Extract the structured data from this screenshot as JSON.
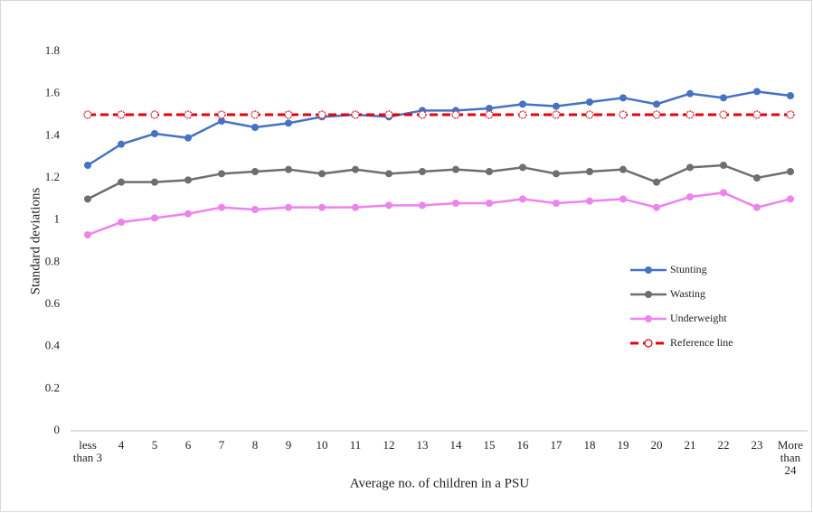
{
  "chart_data": {
    "type": "line",
    "x_label": "Average no. of children in a PSU",
    "y_label": "Standard deviations",
    "categories": [
      "less than 3",
      "4",
      "5",
      "6",
      "7",
      "8",
      "9",
      "10",
      "11",
      "12",
      "13",
      "14",
      "15",
      "16",
      "17",
      "18",
      "19",
      "20",
      "21",
      "22",
      "23",
      "More than 24"
    ],
    "series": [
      {
        "name": "Stunting",
        "color": "#4472c4",
        "values": [
          1.26,
          1.36,
          1.41,
          1.39,
          1.47,
          1.44,
          1.46,
          1.49,
          1.5,
          1.49,
          1.52,
          1.52,
          1.53,
          1.55,
          1.54,
          1.56,
          1.58,
          1.55,
          1.6,
          1.58,
          1.61,
          1.59
        ]
      },
      {
        "name": "Wasting",
        "color": "#6e6e6e",
        "values": [
          1.1,
          1.18,
          1.18,
          1.19,
          1.22,
          1.23,
          1.24,
          1.22,
          1.24,
          1.22,
          1.23,
          1.24,
          1.23,
          1.25,
          1.22,
          1.23,
          1.24,
          1.18,
          1.25,
          1.26,
          1.2,
          1.23
        ]
      },
      {
        "name": "Underweight",
        "color": "#ee82ee",
        "values": [
          0.93,
          0.99,
          1.01,
          1.03,
          1.06,
          1.05,
          1.06,
          1.06,
          1.06,
          1.07,
          1.07,
          1.08,
          1.08,
          1.1,
          1.08,
          1.09,
          1.1,
          1.06,
          1.11,
          1.13,
          1.06,
          1.1
        ]
      },
      {
        "name": "Reference line",
        "color": "#e8000b",
        "dashed": true,
        "values": [
          1.5,
          1.5,
          1.5,
          1.5,
          1.5,
          1.5,
          1.5,
          1.5,
          1.5,
          1.5,
          1.5,
          1.5,
          1.5,
          1.5,
          1.5,
          1.5,
          1.5,
          1.5,
          1.5,
          1.5,
          1.5,
          1.5
        ]
      }
    ],
    "ylim": [
      0,
      1.8
    ],
    "yticks": [
      0,
      0.2,
      0.4,
      0.6,
      0.8,
      1,
      1.2,
      1.4,
      1.6,
      1.8
    ],
    "grid": false,
    "legend": "right"
  }
}
